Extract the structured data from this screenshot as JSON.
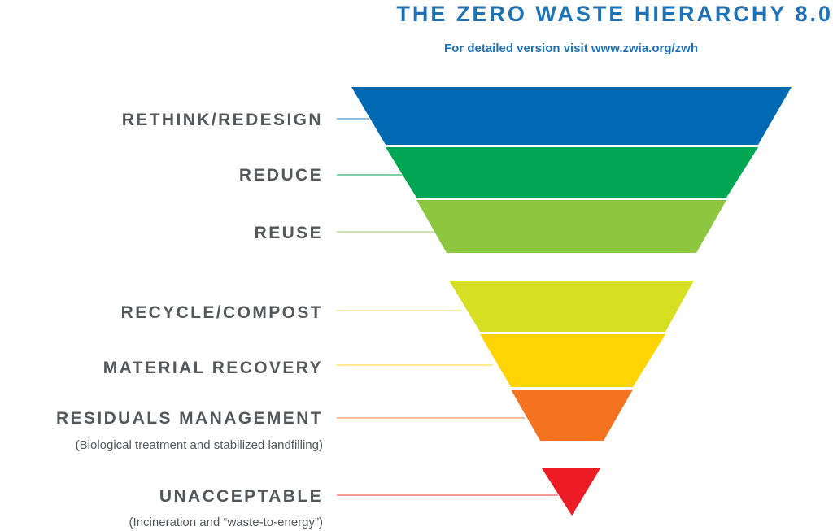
{
  "header": {
    "title": "THE ZERO WASTE HIERARCHY 8.0",
    "subtitle": "For detailed version visit www.zwia.org/zwh"
  },
  "tiers": [
    {
      "label": "RETHINK/REDESIGN",
      "color": "#0069b4",
      "line_color": "#4d97cc"
    },
    {
      "label": "REDUCE",
      "color": "#00a651",
      "line_color": "#33b874"
    },
    {
      "label": "REUSE",
      "color": "#8dc63f",
      "line_color": "#b0d87a"
    },
    {
      "label": "RECYCLE/COMPOST",
      "color": "#d7df23",
      "line_color": "#e3e866"
    },
    {
      "label": "MATERIAL RECOVERY",
      "color": "#ffd400",
      "line_color": "#ffe04d"
    },
    {
      "label": "RESIDUALS MANAGEMENT",
      "note": "(Biological treatment and stabilized landfilling)",
      "color": "#f47321",
      "line_color": "#f79a5c"
    },
    {
      "label": "UNACCEPTABLE",
      "note": "(Incineration and “waste-to-energy”)",
      "color": "#ed1c24",
      "line_color": "#f26166"
    }
  ]
}
